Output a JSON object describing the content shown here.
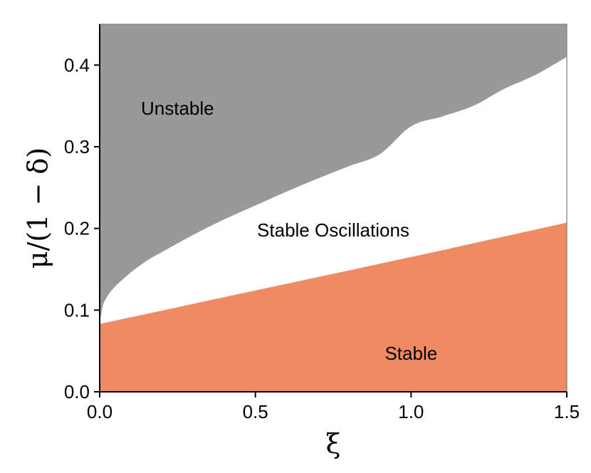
{
  "chart_data": {
    "type": "area",
    "xlabel": "ξ",
    "ylabel": "μ/(1 − δ)",
    "xlim": [
      0,
      1.5
    ],
    "ylim": [
      0,
      0.45
    ],
    "x_ticks": [
      {
        "value": 0.0,
        "label": "0.0"
      },
      {
        "value": 0.5,
        "label": "0.5"
      },
      {
        "value": 1.0,
        "label": "1.0"
      },
      {
        "value": 1.5,
        "label": "1.5"
      }
    ],
    "y_ticks": [
      {
        "value": 0.0,
        "label": "0.0"
      },
      {
        "value": 0.1,
        "label": "0.1"
      },
      {
        "value": 0.2,
        "label": "0.2"
      },
      {
        "value": 0.3,
        "label": "0.3"
      },
      {
        "value": 0.4,
        "label": "0.4"
      }
    ],
    "boundaries": {
      "stable_upper": {
        "x": [
          0.0,
          0.5,
          1.0,
          1.5
        ],
        "y": [
          0.083,
          0.124,
          0.165,
          0.207
        ]
      },
      "unstable_lower": {
        "x": [
          0.0,
          0.01,
          0.025,
          0.05,
          0.1,
          0.15,
          0.2,
          0.3,
          0.4,
          0.5,
          0.6,
          0.7,
          0.8,
          0.9,
          1.0,
          1.1,
          1.2,
          1.3,
          1.4,
          1.5
        ],
        "y": [
          0.083,
          0.105,
          0.117,
          0.129,
          0.146,
          0.16,
          0.171,
          0.192,
          0.211,
          0.228,
          0.245,
          0.261,
          0.276,
          0.291,
          0.325,
          0.337,
          0.35,
          0.371,
          0.388,
          0.41
        ]
      }
    },
    "regions": [
      {
        "label": "Unstable",
        "color": "#999999",
        "x": 0.25,
        "y": 0.347
      },
      {
        "label": "Stable Oscillations",
        "color": "#ffffff",
        "x": 0.75,
        "y": 0.198
      },
      {
        "label": "Stable",
        "color": "#ef8a62",
        "x": 1.0,
        "y": 0.047
      }
    ],
    "panel_border_color": "#7f7f7f"
  }
}
